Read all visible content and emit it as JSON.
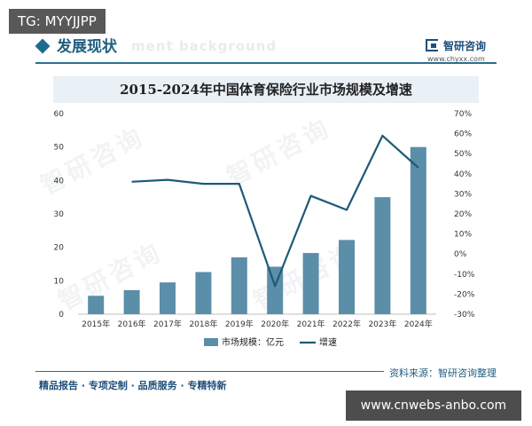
{
  "overlay": {
    "top_tag": "TG: MYYJJPP",
    "bottom_credit": "www.cnwebs-anbo.com"
  },
  "header": {
    "title": "发展现状",
    "watermark_text": "ment background",
    "logo_name": "智研咨询",
    "logo_url": "www.chyxx.com"
  },
  "watermark": {
    "text": "智研咨询"
  },
  "footer": {
    "tagline": "精品报告 · 专项定制 · 品质服务 · 专精特新",
    "source": "资料来源：智研咨询整理"
  },
  "chart_data": {
    "type": "bar",
    "title": "2015-2024年中国体育保险行业市场规模及增速",
    "categories": [
      "2015年",
      "2016年",
      "2017年",
      "2018年",
      "2019年",
      "2020年",
      "2021年",
      "2022年",
      "2023年",
      "2024年"
    ],
    "series": [
      {
        "name": "市场规模：亿元",
        "type": "bar",
        "axis": "left",
        "color": "#5b8ea8",
        "values": [
          5.5,
          7.2,
          9.5,
          12.6,
          17.0,
          14.2,
          18.3,
          22.2,
          35.0,
          50.0
        ]
      },
      {
        "name": "增速",
        "type": "line",
        "axis": "right",
        "color": "#1d5b77",
        "values": [
          null,
          36,
          37,
          35,
          35,
          -16,
          29,
          22,
          59,
          43
        ]
      }
    ],
    "y_left": {
      "range": [
        0,
        60
      ],
      "ticks": [
        "0",
        "10",
        "20",
        "30",
        "40",
        "50",
        "60"
      ]
    },
    "y_right": {
      "range": [
        -30,
        70
      ],
      "ticks": [
        "-30%",
        "-20%",
        "-10%",
        "0%",
        "10%",
        "20%",
        "30%",
        "40%",
        "50%",
        "60%",
        "70%"
      ]
    },
    "legend_position": "bottom"
  }
}
